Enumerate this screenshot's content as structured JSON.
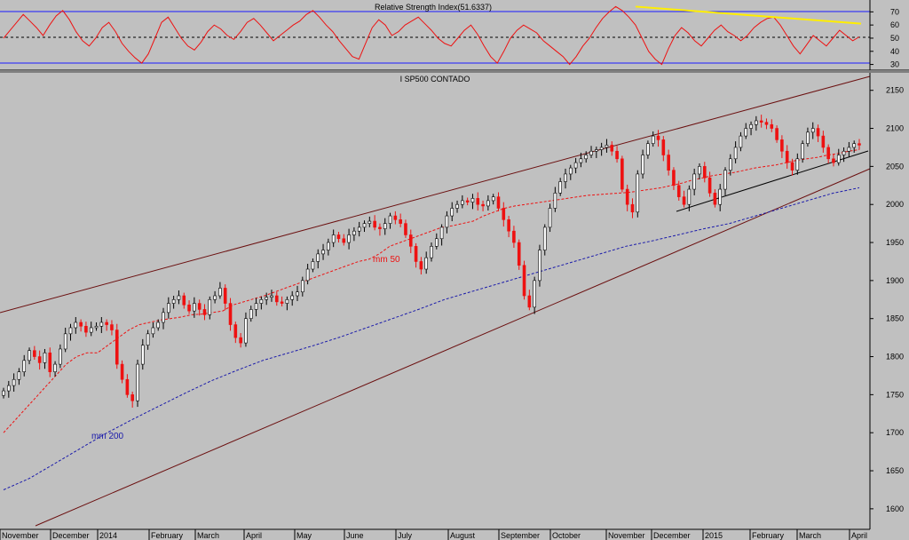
{
  "chart_data": [
    {
      "type": "line",
      "title": "Relative Strength Index(51.6337)",
      "ylim": [
        27,
        77
      ],
      "y_ticks": [
        70,
        60,
        50,
        40,
        30
      ],
      "reference_lines": [
        70,
        50,
        30
      ],
      "grid": false,
      "colors": {
        "rsi": "#ee1111",
        "trendline": "#ffee00",
        "bands": "#1a1aff"
      },
      "series": [
        {
          "values": [
            50,
            56,
            62,
            68,
            63,
            58,
            52,
            60,
            67,
            71,
            64,
            55,
            48,
            44,
            50,
            58,
            62,
            55,
            46,
            40,
            35,
            31,
            38,
            50,
            62,
            66,
            58,
            50,
            44,
            41,
            47,
            55,
            60,
            57,
            52,
            49,
            55,
            62,
            65,
            60,
            54,
            48,
            52,
            56,
            60,
            63,
            68,
            71,
            66,
            60,
            55,
            48,
            42,
            36,
            34,
            46,
            58,
            64,
            60,
            52,
            55,
            60,
            63,
            66,
            61,
            56,
            50,
            46,
            44,
            50,
            56,
            60,
            53,
            44,
            36,
            31,
            40,
            50,
            56,
            60,
            57,
            54,
            48,
            44,
            40,
            36,
            30,
            36,
            44,
            50,
            58,
            65,
            70,
            74,
            71,
            66,
            60,
            50,
            40,
            34,
            30,
            42,
            52,
            58,
            54,
            48,
            44,
            50,
            56,
            60,
            55,
            52,
            48,
            52,
            58,
            62,
            65,
            66,
            60,
            52,
            44,
            38,
            45,
            52,
            48,
            44,
            50,
            56,
            52,
            48,
            51
          ]
        },
        {
          "name": "",
          "x": [
            0,
            1
          ],
          "values": [
            74,
            61
          ]
        }
      ]
    },
    {
      "type": "line",
      "title": "I SP500 CONTADO",
      "ylim": [
        1573,
        2173
      ],
      "y_ticks": [
        2150,
        2100,
        2050,
        2000,
        1950,
        1900,
        1850,
        1800,
        1750,
        1700,
        1650,
        1600
      ],
      "x_labels": [
        "November",
        "December",
        "2014",
        "February",
        "March",
        "April",
        "May",
        "June",
        "July",
        "August",
        "September",
        "October",
        "November",
        "December",
        "2015",
        "February",
        "March",
        "April"
      ],
      "annotations": [
        "mm 50",
        "mm 200"
      ],
      "grid": false,
      "colors": {
        "up": "#000000",
        "down": "#ee1111",
        "mm50": "#ee1111",
        "mm200": "#1a1aaa",
        "trendlines": "#6b1010"
      },
      "series": [
        {
          "name": "I SP500 CONTADO",
          "values": [
            1755,
            1762,
            1770,
            1780,
            1795,
            1808,
            1800,
            1792,
            1805,
            1780,
            1790,
            1810,
            1830,
            1838,
            1845,
            1840,
            1832,
            1838,
            1840,
            1845,
            1842,
            1835,
            1790,
            1770,
            1750,
            1742,
            1790,
            1815,
            1830,
            1838,
            1845,
            1858,
            1870,
            1875,
            1880,
            1868,
            1860,
            1870,
            1862,
            1855,
            1875,
            1880,
            1890,
            1870,
            1842,
            1825,
            1818,
            1850,
            1862,
            1870,
            1875,
            1878,
            1880,
            1872,
            1870,
            1875,
            1880,
            1885,
            1900,
            1915,
            1925,
            1935,
            1940,
            1950,
            1960,
            1955,
            1950,
            1960,
            1965,
            1970,
            1975,
            1978,
            1970,
            1968,
            1975,
            1985,
            1980,
            1975,
            1960,
            1945,
            1925,
            1915,
            1930,
            1945,
            1955,
            1970,
            1985,
            1995,
            2000,
            2005,
            2003,
            2008,
            2000,
            1998,
            2005,
            2010,
            1995,
            1980,
            1965,
            1950,
            1920,
            1880,
            1865,
            1900,
            1940,
            1970,
            1995,
            2015,
            2030,
            2040,
            2048,
            2055,
            2060,
            2065,
            2070,
            2072,
            2075,
            2078,
            2070,
            2060,
            2020,
            2000,
            1990,
            2040,
            2065,
            2080,
            2090,
            2085,
            2065,
            2045,
            2025,
            2010,
            2000,
            2020,
            2040,
            2050,
            2035,
            2015,
            2000,
            2020,
            2045,
            2060,
            2075,
            2090,
            2100,
            2105,
            2110,
            2108,
            2105,
            2100,
            2085,
            2070,
            2055,
            2045,
            2060,
            2080,
            2095,
            2100,
            2090,
            2075,
            2060,
            2055,
            2065,
            2070,
            2075,
            2080,
            2078
          ]
        },
        {
          "name": "mm 50",
          "values": [
            1700,
            1715,
            1730,
            1745,
            1760,
            1775,
            1790,
            1800,
            1805,
            1805,
            1815,
            1825,
            1835,
            1842,
            1845,
            1848,
            1850,
            1852,
            1855,
            1856,
            1858,
            1860,
            1868,
            1872,
            1876,
            1880,
            1885,
            1890,
            1895,
            1900,
            1905,
            1910,
            1915,
            1920,
            1925,
            1928,
            1935,
            1945,
            1950,
            1955,
            1960,
            1965,
            1970,
            1972,
            1975,
            1978,
            1985,
            1990,
            1995,
            1998,
            2000,
            2002,
            2004,
            2006,
            2008,
            2010,
            2012,
            2013,
            2014,
            2015,
            2016,
            2018,
            2020,
            2022,
            2025,
            2028,
            2032,
            2035,
            2038,
            2040,
            2042,
            2045,
            2048,
            2050,
            2052,
            2055,
            2058,
            2060,
            2062,
            2065,
            2067,
            2070,
            2072
          ]
        },
        {
          "name": "mm 200",
          "values": [
            1625,
            1640,
            1660,
            1680,
            1700,
            1718,
            1735,
            1752,
            1768,
            1782,
            1795,
            1805,
            1815,
            1826,
            1838,
            1850,
            1862,
            1875,
            1885,
            1895,
            1905,
            1915,
            1925,
            1935,
            1945,
            1952,
            1960,
            1968,
            1975,
            1985,
            1995,
            2005,
            2015,
            2022
          ]
        }
      ]
    }
  ]
}
